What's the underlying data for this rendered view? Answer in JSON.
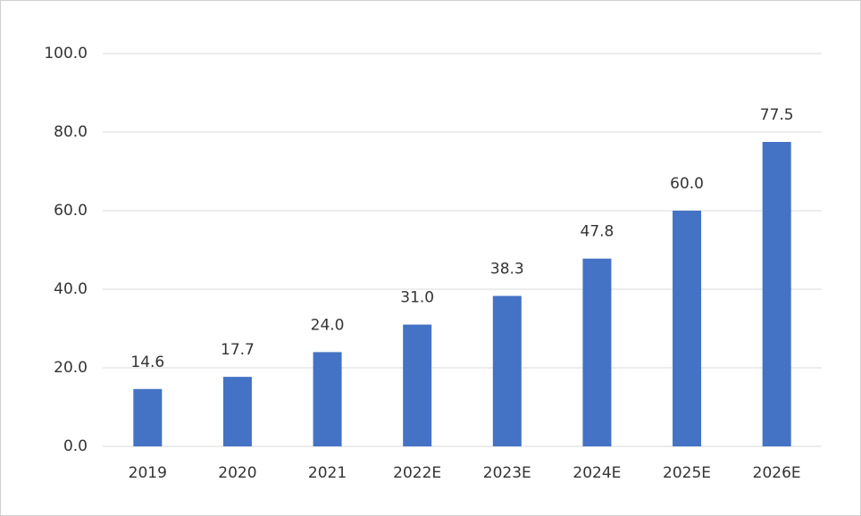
{
  "chart_data": {
    "type": "bar",
    "categories": [
      "2019",
      "2020",
      "2021",
      "2022E",
      "2023E",
      "2024E",
      "2025E",
      "2026E"
    ],
    "values": [
      14.6,
      17.7,
      24,
      31,
      38.3,
      47.8,
      60,
      77.5
    ],
    "value_labels": [
      "14.6",
      "17.7",
      "24.0",
      "31.0",
      "38.3",
      "47.8",
      "60.0",
      "77.5"
    ],
    "color": "#4472c4",
    "ylim": [
      0,
      100
    ],
    "yticks": [
      {
        "value": 0,
        "label": "0.0"
      },
      {
        "value": 20,
        "label": "20.0"
      },
      {
        "value": 40,
        "label": "40.0"
      },
      {
        "value": 60,
        "label": "60.0"
      },
      {
        "value": 80,
        "label": "80.0"
      },
      {
        "value": 100,
        "label": "100.0"
      }
    ],
    "grid": true
  }
}
